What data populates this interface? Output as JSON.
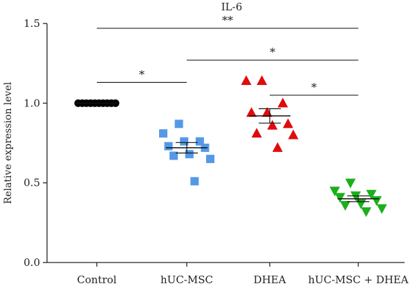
{
  "chart_data": {
    "type": "scatter",
    "title": "IL-6",
    "xlabel": "",
    "ylabel": "Relative expression level",
    "ylim": [
      0.0,
      1.5
    ],
    "yticks": [
      "0.0",
      "0.5",
      "1.0",
      "1.5"
    ],
    "grid": false,
    "categories": [
      "Control",
      "hUC-MSC",
      "DHEA",
      "hUC-MSC + DHEA"
    ],
    "groups": [
      {
        "name": "Control",
        "color": "#000000",
        "marker": "circle",
        "values": [
          1.0,
          1.0,
          1.0,
          1.0,
          1.0,
          1.0,
          1.0,
          1.0,
          1.0,
          1.0
        ],
        "mean": 1.0,
        "sem": 0.0
      },
      {
        "name": "hUC-MSC",
        "color": "#5599e6",
        "marker": "square",
        "values": [
          0.87,
          0.81,
          0.76,
          0.76,
          0.73,
          0.72,
          0.68,
          0.67,
          0.65,
          0.51
        ],
        "mean": 0.72,
        "sem": 0.033
      },
      {
        "name": "DHEA",
        "color": "#e00b0b",
        "marker": "triangle-up",
        "values": [
          1.14,
          1.14,
          1.0,
          0.94,
          0.94,
          0.87,
          0.86,
          0.81,
          0.8,
          0.72
        ],
        "mean": 0.92,
        "sem": 0.045
      },
      {
        "name": "hUC-MSC + DHEA",
        "color": "#1ab01a",
        "marker": "triangle-down",
        "values": [
          0.5,
          0.45,
          0.43,
          0.42,
          0.41,
          0.39,
          0.37,
          0.36,
          0.34,
          0.32
        ],
        "mean": 0.4,
        "sem": 0.018
      }
    ],
    "significance": [
      {
        "from": "Control",
        "to": "hUC-MSC + DHEA",
        "label": "**",
        "y": 1.47
      },
      {
        "from": "hUC-MSC",
        "to": "hUC-MSC + DHEA",
        "label": "*",
        "y": 1.27
      },
      {
        "from": "Control",
        "to": "hUC-MSC",
        "label": "*",
        "y": 1.13
      },
      {
        "from": "DHEA",
        "to": "hUC-MSC + DHEA",
        "label": "*",
        "y": 1.05
      }
    ]
  }
}
